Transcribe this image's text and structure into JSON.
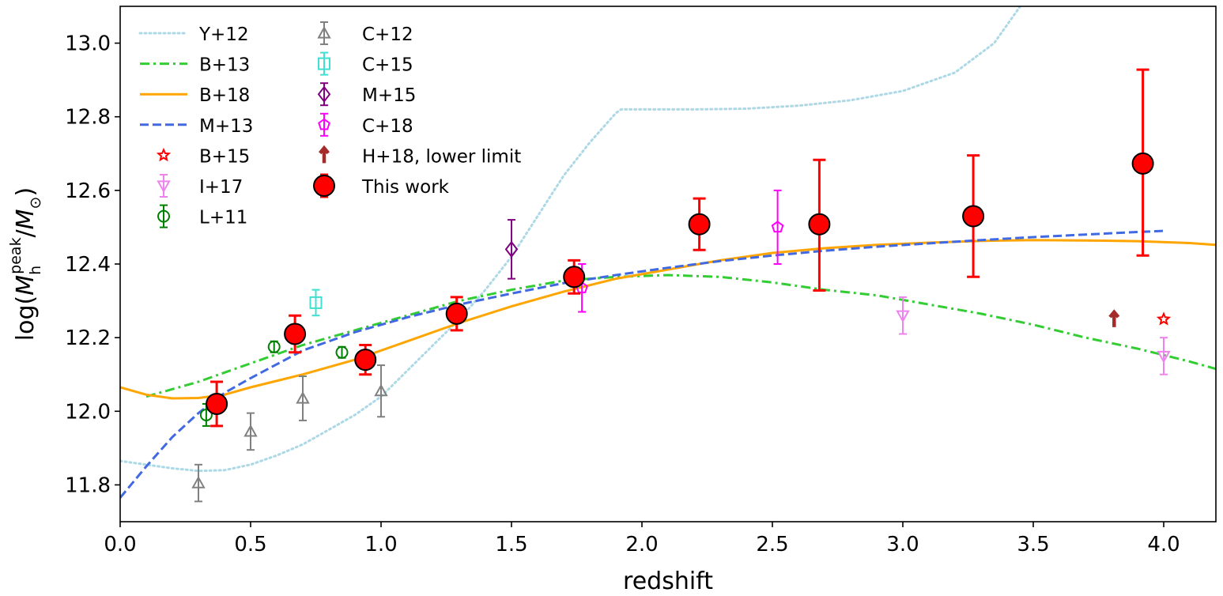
{
  "chart_data": {
    "type": "scatter",
    "xlabel": "redshift",
    "ylabel": "log(M_h^peak/M_⊙)",
    "xlim": [
      0.0,
      4.2
    ],
    "ylim": [
      11.7,
      13.1
    ],
    "xticks": [
      0.0,
      0.5,
      1.0,
      1.5,
      2.0,
      2.5,
      3.0,
      3.5,
      4.0
    ],
    "yticks": [
      11.8,
      12.0,
      12.2,
      12.4,
      12.6,
      12.8,
      13.0
    ],
    "xtick_labels": [
      "0.0",
      "0.5",
      "1.0",
      "1.5",
      "2.0",
      "2.5",
      "3.0",
      "3.5",
      "4.0"
    ],
    "ytick_labels": [
      "11.8",
      "12.0",
      "12.2",
      "12.4",
      "12.6",
      "12.8",
      "13.0"
    ],
    "grid": false,
    "legend_position": "top-left",
    "lines": [
      {
        "name": "Y+12",
        "color": "#add8e6",
        "style": "dotted",
        "x": [
          0.0,
          0.1,
          0.2,
          0.3,
          0.4,
          0.5,
          0.6,
          0.7,
          0.8,
          0.9,
          1.0,
          1.1,
          1.2,
          1.3,
          1.4,
          1.5,
          1.6,
          1.7,
          1.8,
          1.9,
          1.92,
          2.0,
          2.2,
          2.4,
          2.6,
          2.8,
          3.0,
          3.2,
          3.35,
          3.45
        ],
        "y": [
          11.865,
          11.855,
          11.845,
          11.838,
          11.84,
          11.855,
          11.88,
          11.91,
          11.95,
          11.99,
          12.04,
          12.11,
          12.18,
          12.25,
          12.33,
          12.42,
          12.53,
          12.64,
          12.73,
          12.81,
          12.82,
          12.82,
          12.82,
          12.822,
          12.83,
          12.845,
          12.87,
          12.92,
          13.0,
          13.1
        ]
      },
      {
        "name": "B+13",
        "color": "#32cd32",
        "style": "dashdot",
        "x": [
          0.1,
          0.3,
          0.5,
          0.7,
          0.9,
          1.1,
          1.3,
          1.5,
          1.7,
          1.9,
          2.1,
          2.3,
          2.5,
          2.7,
          2.9,
          3.1,
          3.3,
          3.5,
          3.7,
          3.9,
          4.1,
          4.2
        ],
        "y": [
          12.04,
          12.08,
          12.13,
          12.18,
          12.22,
          12.26,
          12.3,
          12.33,
          12.355,
          12.365,
          12.37,
          12.365,
          12.35,
          12.33,
          12.315,
          12.29,
          12.265,
          12.235,
          12.2,
          12.17,
          12.135,
          12.115
        ]
      },
      {
        "name": "B+18",
        "color": "#ffa500",
        "style": "solid",
        "x": [
          0.0,
          0.1,
          0.2,
          0.3,
          0.4,
          0.5,
          0.7,
          0.9,
          1.1,
          1.3,
          1.5,
          1.7,
          1.9,
          2.1,
          2.3,
          2.5,
          2.7,
          2.9,
          3.1,
          3.3,
          3.5,
          3.7,
          3.9,
          4.1,
          4.2
        ],
        "y": [
          12.065,
          12.045,
          12.035,
          12.036,
          12.045,
          12.065,
          12.1,
          12.14,
          12.19,
          12.24,
          12.285,
          12.325,
          12.36,
          12.385,
          12.41,
          12.43,
          12.443,
          12.452,
          12.458,
          12.463,
          12.465,
          12.464,
          12.462,
          12.457,
          12.452
        ]
      },
      {
        "name": "M+13",
        "color": "#4169e1",
        "style": "dashed",
        "x": [
          0.0,
          0.1,
          0.2,
          0.3,
          0.4,
          0.5,
          0.7,
          0.9,
          1.1,
          1.3,
          1.5,
          1.7,
          1.9,
          2.1,
          2.3,
          2.5,
          2.7,
          2.9,
          3.1,
          3.3,
          3.5,
          3.7,
          3.9,
          4.0
        ],
        "y": [
          11.765,
          11.85,
          11.93,
          11.995,
          12.05,
          12.09,
          12.165,
          12.215,
          12.255,
          12.29,
          12.32,
          12.348,
          12.37,
          12.39,
          12.408,
          12.423,
          12.436,
          12.447,
          12.456,
          12.465,
          12.473,
          12.48,
          12.487,
          12.49
        ]
      }
    ],
    "series": [
      {
        "name": "B+15",
        "marker": "star",
        "color": "#ff0000",
        "x": [
          4.0
        ],
        "y": [
          12.25
        ],
        "yerr": [
          0
        ]
      },
      {
        "name": "I+17",
        "marker": "triangle-down",
        "color": "#ee82ee",
        "x": [
          3.0,
          4.0
        ],
        "y": [
          12.26,
          12.15
        ],
        "yerr": [
          0.05,
          0.05
        ]
      },
      {
        "name": "L+11",
        "marker": "circle",
        "color": "#008000",
        "x": [
          0.33,
          0.59,
          0.85
        ],
        "y": [
          11.99,
          12.175,
          12.16
        ],
        "yerr": [
          0.03,
          0.015,
          0.015
        ]
      },
      {
        "name": "C+12",
        "marker": "triangle-up",
        "color": "#808080",
        "x": [
          0.3,
          0.5,
          0.7,
          1.0
        ],
        "y": [
          11.805,
          11.945,
          12.035,
          12.055
        ],
        "yerr": [
          0.05,
          0.05,
          0.06,
          0.07
        ]
      },
      {
        "name": "C+15",
        "marker": "square",
        "color": "#40e0d0",
        "x": [
          0.75
        ],
        "y": [
          12.295
        ],
        "yerr": [
          0.035
        ]
      },
      {
        "name": "M+15",
        "marker": "diamond",
        "color": "#800080",
        "x": [
          1.5
        ],
        "y": [
          12.44
        ],
        "yerr": [
          0.08
        ]
      },
      {
        "name": "C+18",
        "marker": "pentagon",
        "color": "#ff00ff",
        "x": [
          1.77,
          2.52
        ],
        "y": [
          12.335,
          12.5
        ],
        "yerr": [
          0.065,
          0.1
        ]
      },
      {
        "name": "H+18, lower limit",
        "marker": "arrow-up",
        "color": "#a52a2a",
        "x": [
          3.81
        ],
        "y": [
          12.25
        ],
        "yerr": [
          0
        ]
      },
      {
        "name": "This work",
        "marker": "big-circle",
        "color": "#ff0000",
        "x": [
          0.37,
          0.67,
          0.94,
          1.29,
          1.74,
          2.22,
          2.68,
          3.27,
          3.92
        ],
        "y": [
          12.02,
          12.21,
          12.14,
          12.265,
          12.365,
          12.508,
          12.508,
          12.53,
          12.673
        ],
        "yerr_low": [
          0.06,
          0.05,
          0.04,
          0.045,
          0.045,
          0.07,
          0.18,
          0.165,
          0.25
        ],
        "yerr_high": [
          0.06,
          0.05,
          0.04,
          0.045,
          0.045,
          0.07,
          0.175,
          0.165,
          0.255
        ]
      }
    ],
    "legend": {
      "col1": [
        "Y+12",
        "B+13",
        "B+18",
        "M+13",
        "B+15",
        "I+17",
        "L+11"
      ],
      "col2": [
        "C+12",
        "C+15",
        "M+15",
        "C+18",
        "H+18, lower limit",
        "This work"
      ]
    }
  }
}
